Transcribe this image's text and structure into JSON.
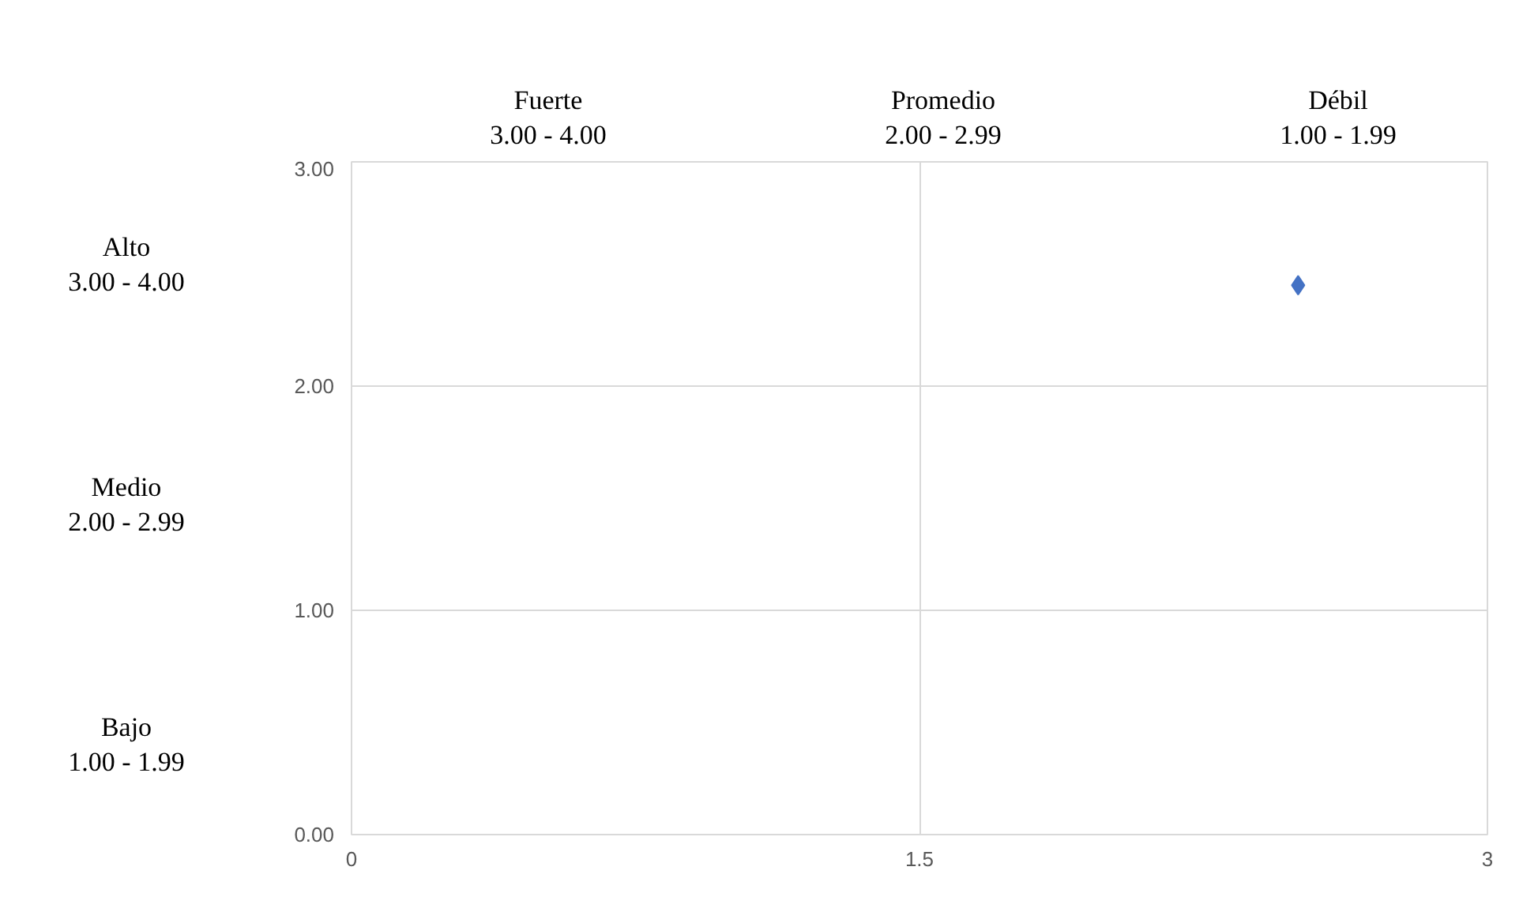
{
  "chart_data": {
    "type": "scatter",
    "x": [
      2.5
    ],
    "values": [
      2.45
    ],
    "color": "#4472c4",
    "marker": "diamond",
    "xlim": [
      0,
      3
    ],
    "xticks": [
      0,
      1.5,
      3
    ],
    "ylim": [
      0,
      3
    ],
    "yticks": [
      {
        "value": 0,
        "label": "0.00"
      },
      {
        "value": 1,
        "label": "1.00"
      },
      {
        "value": 2,
        "label": "2.00"
      },
      {
        "value": 3,
        "label": "3.00"
      }
    ],
    "grid": true,
    "annotations": [
      "Fuerte\n3.00 - 4.00",
      "Promedio\n2.00 - 2.99",
      "Débil\n1.00 - 1.99",
      "Alto\n3.00 - 4.00",
      "Medio\n2.00 - 2.99",
      "Bajo\n1.00 - 1.99"
    ]
  }
}
